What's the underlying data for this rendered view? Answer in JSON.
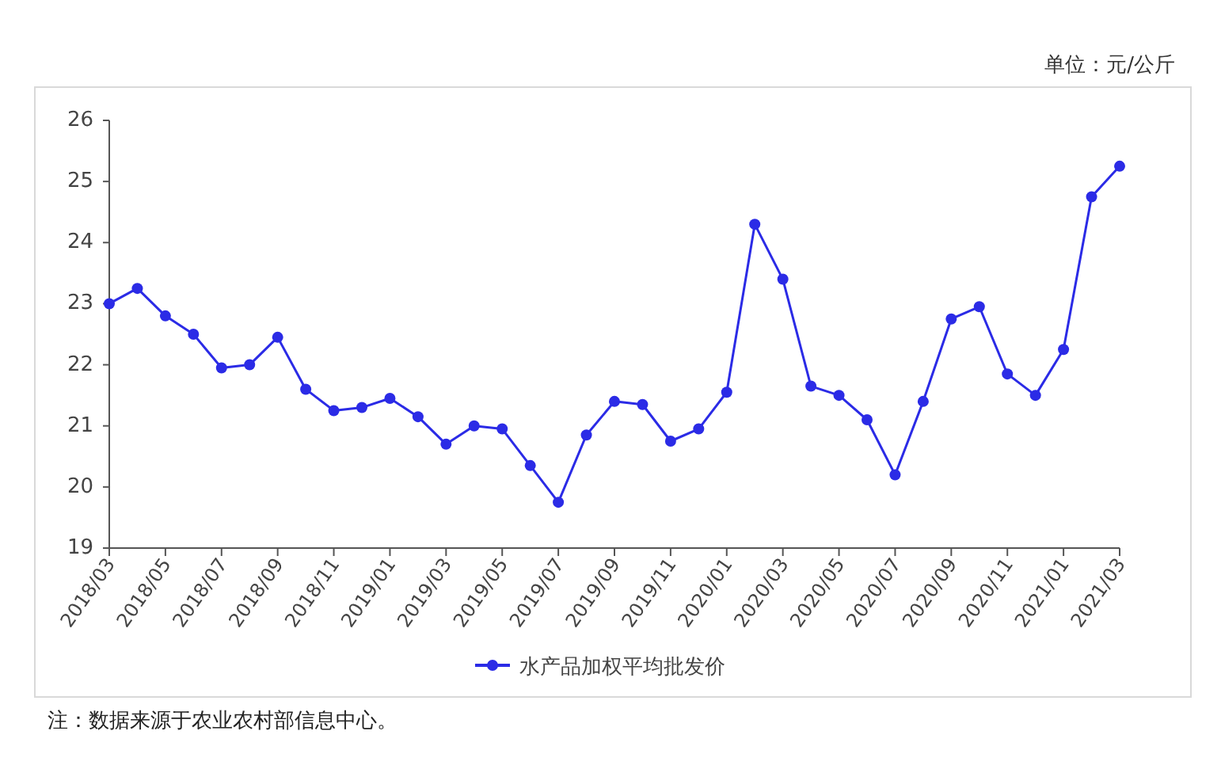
{
  "chart_data": {
    "type": "line",
    "categories": [
      "2018/03",
      null,
      "2018/05",
      null,
      "2018/07",
      null,
      "2018/09",
      null,
      "2018/11",
      null,
      "2019/01",
      null,
      "2019/03",
      null,
      "2019/05",
      null,
      "2019/07",
      null,
      "2019/09",
      null,
      "2019/11",
      null,
      "2020/01",
      null,
      "2020/03",
      null,
      "2020/05",
      null,
      "2020/07",
      null,
      "2020/09",
      null,
      "2020/11",
      null,
      "2021/01",
      null,
      "2021/03"
    ],
    "series": [
      {
        "name": "水产品加权平均批发价",
        "color": "#2b2be6",
        "values": [
          23.0,
          23.25,
          22.8,
          22.5,
          21.95,
          22.0,
          22.45,
          21.6,
          21.25,
          21.3,
          21.45,
          21.15,
          20.7,
          21.0,
          20.95,
          20.35,
          19.75,
          20.85,
          21.4,
          21.35,
          20.75,
          20.95,
          21.55,
          24.3,
          23.4,
          21.65,
          21.5,
          21.1,
          20.2,
          21.4,
          22.75,
          22.95,
          21.85,
          21.5,
          22.25,
          24.75,
          25.25
        ]
      }
    ],
    "ylim": [
      19,
      26
    ],
    "yticks": [
      19,
      20,
      21,
      22,
      23,
      24,
      25,
      26
    ],
    "marker": "circle",
    "legend": "bottom",
    "annotations": [
      "单位：元/公斤",
      "注：数据来源于农业农村部信息中心。"
    ]
  }
}
